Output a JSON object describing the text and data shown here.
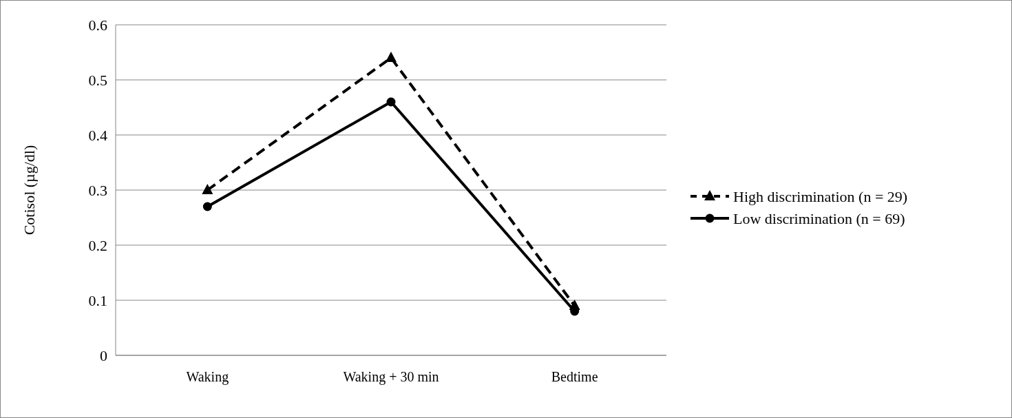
{
  "chart_data": {
    "type": "line",
    "ylabel": "Cotisol (µg/dl)",
    "categories": [
      "Waking",
      "Waking + 30 min",
      "Bedtime"
    ],
    "series": [
      {
        "name": "High discrimination (n = 29)",
        "color": "#000000",
        "values": [
          0.3,
          0.54,
          0.09
        ],
        "marker": "triangle",
        "line_style": "dashed"
      },
      {
        "name": "Low discrimination (n = 69)",
        "color": "#000000",
        "values": [
          0.27,
          0.46,
          0.08
        ],
        "marker": "circle",
        "line_style": "solid"
      }
    ],
    "ylim": [
      0,
      0.6
    ],
    "yticks": [
      0,
      0.1,
      0.2,
      0.3,
      0.4,
      0.5,
      0.6
    ],
    "grid": "y",
    "legend": "right"
  }
}
